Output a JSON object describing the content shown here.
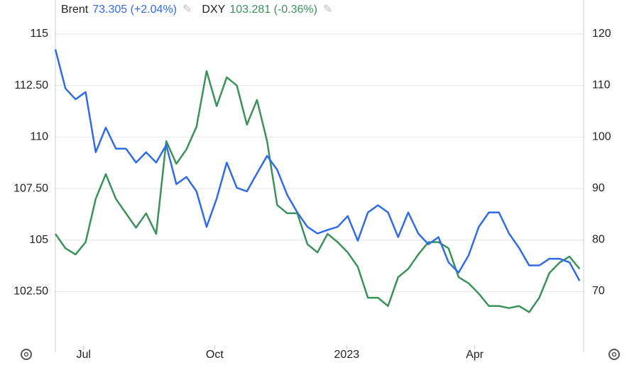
{
  "chart_data": {
    "type": "line",
    "x": [
      0,
      1,
      2,
      3,
      4,
      5,
      6,
      7,
      8,
      9,
      10,
      11,
      12,
      13,
      14,
      15,
      16,
      17,
      18,
      19,
      20,
      21,
      22,
      23,
      24,
      25,
      26,
      27,
      28,
      29,
      30,
      31,
      32,
      33,
      34,
      35,
      36,
      37,
      38,
      39,
      40,
      41,
      42,
      43,
      44,
      45,
      46,
      47,
      48,
      49,
      50,
      51,
      52
    ],
    "xlim": [
      0,
      52.4
    ],
    "xticks": [
      {
        "value": 2.8,
        "label": "Jul"
      },
      {
        "value": 15.8,
        "label": "Oct"
      },
      {
        "value": 28.9,
        "label": "2023"
      },
      {
        "value": 41.6,
        "label": "Apr"
      }
    ],
    "ylim": [
      99.9,
      116.65
    ],
    "yticks": [
      {
        "value": 102.5,
        "label": "102.50"
      },
      105,
      {
        "value": 107.5,
        "label": "107.50"
      },
      110,
      {
        "value": 112.5,
        "label": "112.50"
      },
      115
    ],
    "y2lim": [
      59.5,
      126.6
    ],
    "y2ticks": [
      70,
      80,
      90,
      100,
      110,
      120
    ],
    "grid": true,
    "series": [
      {
        "name": "Brent",
        "legend_value": "73.305 (+2.04%)",
        "color": "#2f6be8",
        "axis": "y2",
        "values": [
          117,
          109.4,
          107.3,
          108.7,
          97,
          101.8,
          97.7,
          97.7,
          95,
          97,
          95,
          98.4,
          90.8,
          92.2,
          89.4,
          82.5,
          88,
          95,
          90.1,
          89.4,
          92.9,
          96.3,
          93.6,
          88.7,
          85.3,
          82.5,
          81.2,
          81.9,
          82.5,
          84.6,
          79.8,
          85.3,
          86.7,
          85.3,
          80.5,
          85.3,
          81.2,
          79.1,
          80.5,
          75.6,
          73.6,
          77,
          82.5,
          85.3,
          85.3,
          81.2,
          78.4,
          75,
          75,
          76.3,
          76.3,
          75.6,
          72
        ]
      },
      {
        "name": "DXY",
        "legend_value": "103.281 (-0.36%)",
        "color": "#3a9259",
        "values": [
          105.3,
          104.6,
          104.3,
          104.9,
          107,
          108.2,
          107,
          106.3,
          105.6,
          106.3,
          105.3,
          109.8,
          108.7,
          109.4,
          110.5,
          113.2,
          111.5,
          112.9,
          112.5,
          110.6,
          111.8,
          109.8,
          106.7,
          106.3,
          106.3,
          104.8,
          104.4,
          105.3,
          104.9,
          104.4,
          103.7,
          102.2,
          102.2,
          101.8,
          103.2,
          103.6,
          104.3,
          104.9,
          104.9,
          104.6,
          103.2,
          102.9,
          102.4,
          101.8,
          101.8,
          101.7,
          101.8,
          101.5,
          102.2,
          103.4,
          103.9,
          104.2,
          103.6
        ]
      }
    ]
  }
}
